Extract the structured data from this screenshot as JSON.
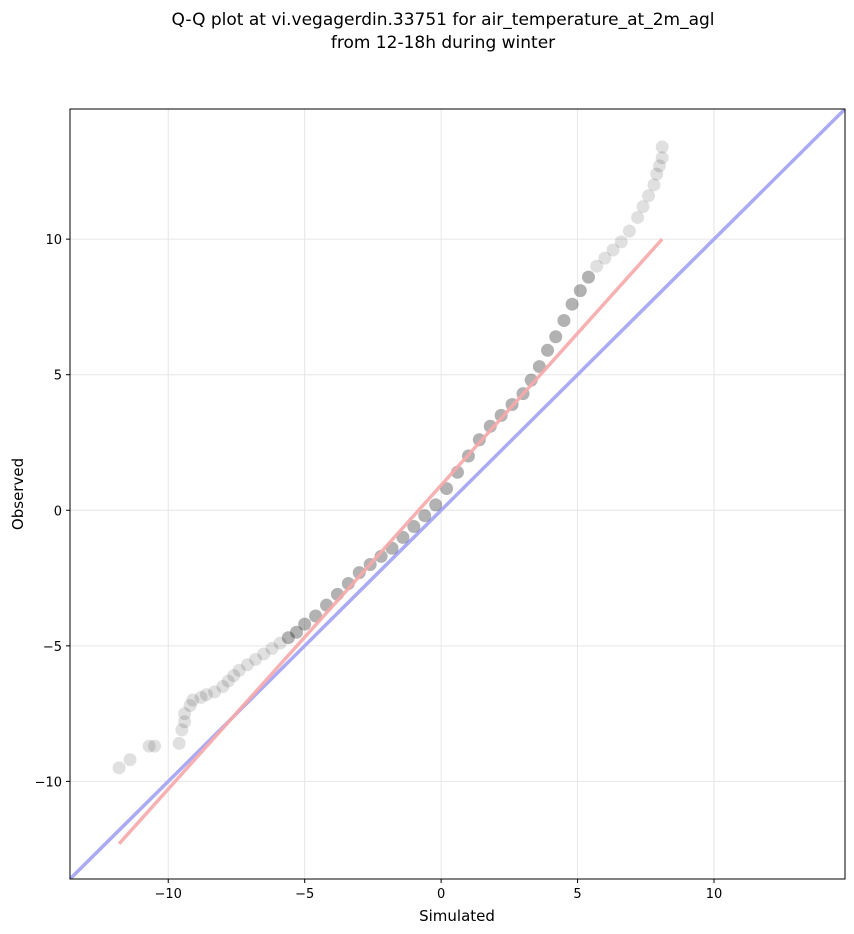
{
  "chart_data": {
    "type": "scatter",
    "title": "Q-Q plot at vi.vegagerdin.33751 for air_temperature_at_2m_agl",
    "subtitle": "from 12-18h during winter",
    "xlabel": "Simulated",
    "ylabel": "Observed",
    "xlim": [
      -13.6,
      14.8
    ],
    "ylim": [
      -13.6,
      14.8
    ],
    "xticks": [
      -10,
      -5,
      0,
      5,
      10
    ],
    "yticks": [
      -10,
      -5,
      0,
      5,
      10
    ],
    "xtick_labels": [
      "−10",
      "−5",
      "0",
      "5",
      "10"
    ],
    "ytick_labels": [
      "−10",
      "−5",
      "0",
      "5",
      "10"
    ],
    "grid": true,
    "point_color": "#000000",
    "reference_line": {
      "x": [
        -13.6,
        14.8
      ],
      "y": [
        -13.6,
        14.8
      ],
      "color": "#aaaaf5"
    },
    "fit_line": {
      "x": [
        -11.8,
        8.1
      ],
      "y": [
        -12.3,
        10.0
      ],
      "color": "#f7a8aa"
    },
    "quantile_points": {
      "x": [
        -11.8,
        -11.4,
        -10.7,
        -10.5,
        -9.6,
        -9.5,
        -9.4,
        -9.4,
        -9.2,
        -9.1,
        -8.8,
        -8.6,
        -8.3,
        -8.0,
        -7.8,
        -7.6,
        -7.4,
        -7.1,
        -6.8,
        -6.5,
        -6.2,
        -5.9,
        -5.6,
        -5.3,
        -5.0,
        -4.6,
        -4.2,
        -3.8,
        -3.4,
        -3.0,
        -2.6,
        -2.2,
        -1.8,
        -1.4,
        -1.0,
        -0.6,
        -0.2,
        0.2,
        0.6,
        1.0,
        1.4,
        1.8,
        2.2,
        2.6,
        3.0,
        3.3,
        3.6,
        3.9,
        4.2,
        4.5,
        4.8,
        5.1,
        5.4,
        5.7,
        6.0,
        6.3,
        6.6,
        6.9,
        7.2,
        7.4,
        7.6,
        7.8,
        7.9,
        8.0,
        8.1,
        8.1
      ],
      "y": [
        -9.5,
        -9.2,
        -8.7,
        -8.7,
        -8.6,
        -8.1,
        -7.8,
        -7.5,
        -7.2,
        -7.0,
        -6.9,
        -6.8,
        -6.7,
        -6.5,
        -6.3,
        -6.1,
        -5.9,
        -5.7,
        -5.5,
        -5.3,
        -5.1,
        -4.9,
        -4.7,
        -4.5,
        -4.2,
        -3.9,
        -3.5,
        -3.1,
        -2.7,
        -2.3,
        -2.0,
        -1.7,
        -1.4,
        -1.0,
        -0.6,
        -0.2,
        0.2,
        0.8,
        1.4,
        2.0,
        2.6,
        3.1,
        3.5,
        3.9,
        4.3,
        4.8,
        5.3,
        5.9,
        6.4,
        7.0,
        7.6,
        8.1,
        8.6,
        9.0,
        9.3,
        9.6,
        9.9,
        10.3,
        10.8,
        11.2,
        11.6,
        12.0,
        12.4,
        12.7,
        13.0,
        13.4
      ]
    }
  }
}
